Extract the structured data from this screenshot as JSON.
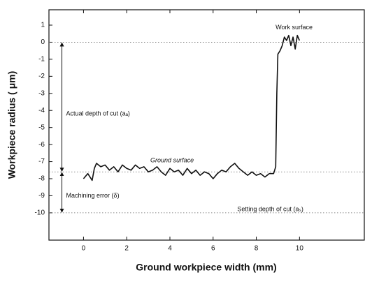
{
  "chart_data": {
    "type": "line",
    "xlabel": "Ground workpiece width (mm)",
    "ylabel": "Workpiece radius ( μm)",
    "x": [
      0,
      0.2,
      0.4,
      0.5,
      0.6,
      0.8,
      1.0,
      1.2,
      1.4,
      1.6,
      1.8,
      2.0,
      2.2,
      2.4,
      2.6,
      2.8,
      3.0,
      3.2,
      3.4,
      3.6,
      3.8,
      4.0,
      4.2,
      4.4,
      4.6,
      4.8,
      5.0,
      5.2,
      5.4,
      5.6,
      5.8,
      6.0,
      6.2,
      6.4,
      6.6,
      6.8,
      7.0,
      7.2,
      7.4,
      7.6,
      7.8,
      8.0,
      8.2,
      8.4,
      8.6,
      8.8,
      8.9,
      8.95,
      9.0,
      9.1,
      9.2,
      9.3,
      9.4,
      9.5,
      9.6,
      9.7,
      9.8,
      9.9,
      10.0
    ],
    "series": [
      {
        "color": "#111111",
        "values": [
          -8.0,
          -7.7,
          -8.1,
          -7.4,
          -7.1,
          -7.3,
          -7.2,
          -7.5,
          -7.3,
          -7.6,
          -7.2,
          -7.4,
          -7.5,
          -7.2,
          -7.4,
          -7.3,
          -7.6,
          -7.5,
          -7.3,
          -7.6,
          -7.8,
          -7.4,
          -7.6,
          -7.5,
          -7.8,
          -7.4,
          -7.7,
          -7.5,
          -7.8,
          -7.6,
          -7.7,
          -8.0,
          -7.7,
          -7.5,
          -7.6,
          -7.3,
          -7.1,
          -7.4,
          -7.6,
          -7.8,
          -7.6,
          -7.8,
          -7.7,
          -7.9,
          -7.7,
          -7.7,
          -7.3,
          -3.0,
          -0.7,
          -0.5,
          -0.2,
          0.3,
          0.1,
          0.4,
          -0.2,
          0.3,
          -0.4,
          0.4,
          0.1
        ]
      }
    ],
    "xlim": [
      -1.6,
      13
    ],
    "xticks": [
      0,
      2,
      4,
      6,
      8,
      10
    ],
    "ylim": [
      -11.6,
      1.9
    ],
    "yticks": [
      1,
      0,
      -1,
      -2,
      -3,
      -4,
      -5,
      -6,
      -7,
      -8,
      -9,
      -10
    ],
    "reference_lines": [
      0,
      -7.6,
      -10
    ],
    "annotations": [
      "Work surface",
      "Actual depth of cut (aₐ)",
      "Ground surface",
      "Machining error (δ)",
      "Setting depth of cut (aₛ)"
    ]
  }
}
